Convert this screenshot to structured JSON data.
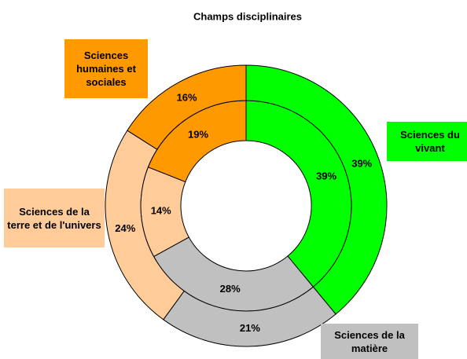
{
  "chart_data": {
    "type": "donut",
    "title": "Champs disciplinaires",
    "categories": [
      "Sciences du vivant",
      "Sciences de la matière",
      "Sciences de la terre et de l'univers",
      "Sciences humaines et sociales"
    ],
    "colors": [
      "#00ff00",
      "#c0c0c0",
      "#ffcc99",
      "#ff9900"
    ],
    "series": [
      {
        "values": [
          39,
          28,
          14,
          19
        ],
        "value_labels": [
          "39%",
          "28%",
          "14%",
          "19%"
        ]
      },
      {
        "values": [
          39,
          21,
          24,
          16
        ],
        "value_labels": [
          "39%",
          "21%",
          "24%",
          "16%"
        ]
      }
    ]
  }
}
